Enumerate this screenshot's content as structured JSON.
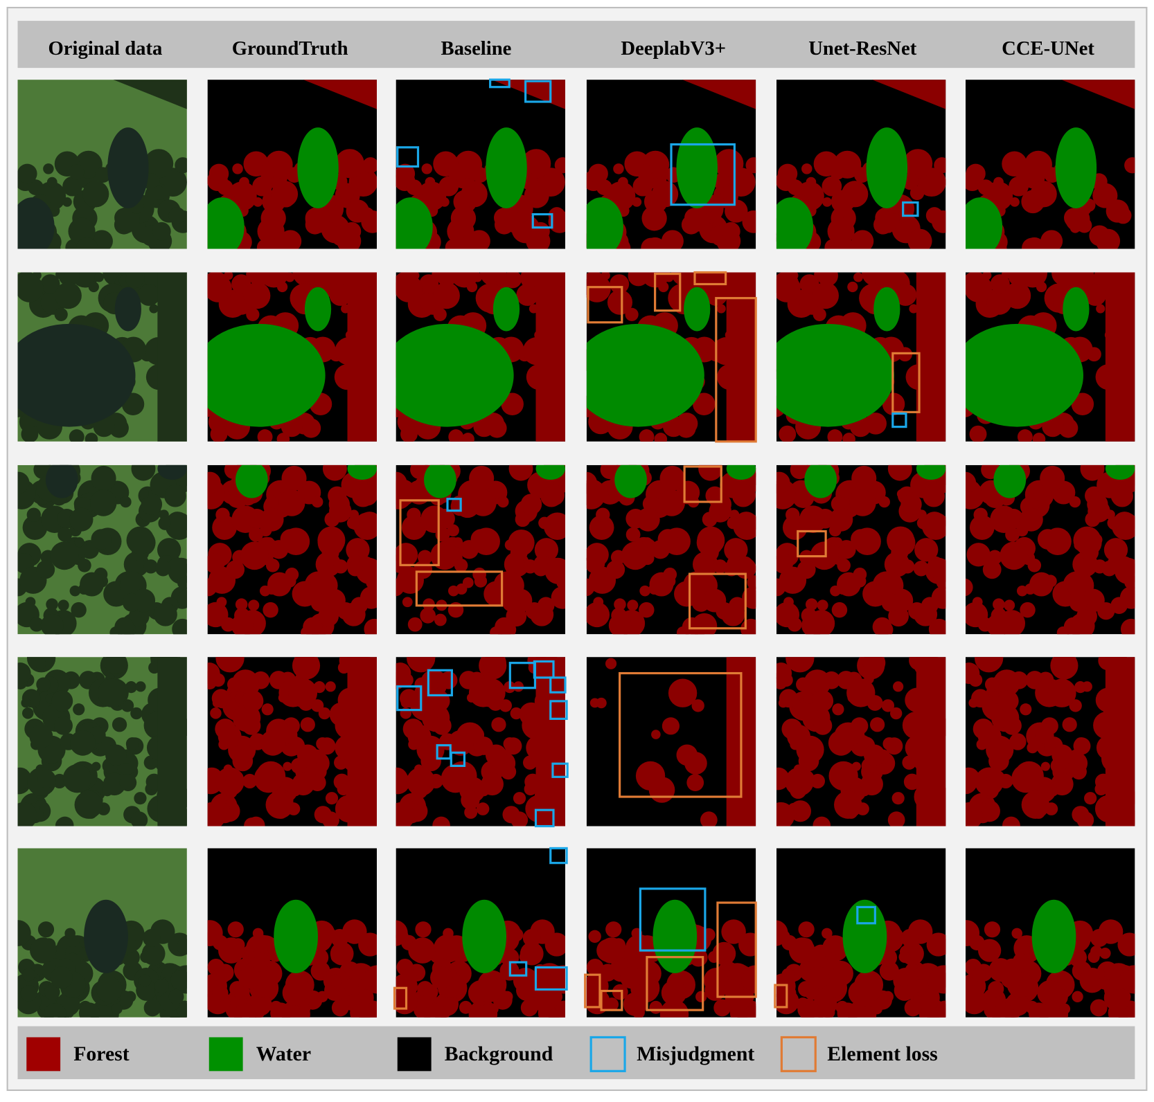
{
  "header": {
    "columns": [
      "Original data",
      "GroundTruth",
      "Baseline",
      "DeeplabV3+",
      "Unet-ResNet",
      "CCE-UNet"
    ]
  },
  "legend": [
    {
      "label": "Forest"
    },
    {
      "label": "Water"
    },
    {
      "label": "Background"
    },
    {
      "label": "Misjudgment"
    },
    {
      "label": "Element loss"
    }
  ]
}
